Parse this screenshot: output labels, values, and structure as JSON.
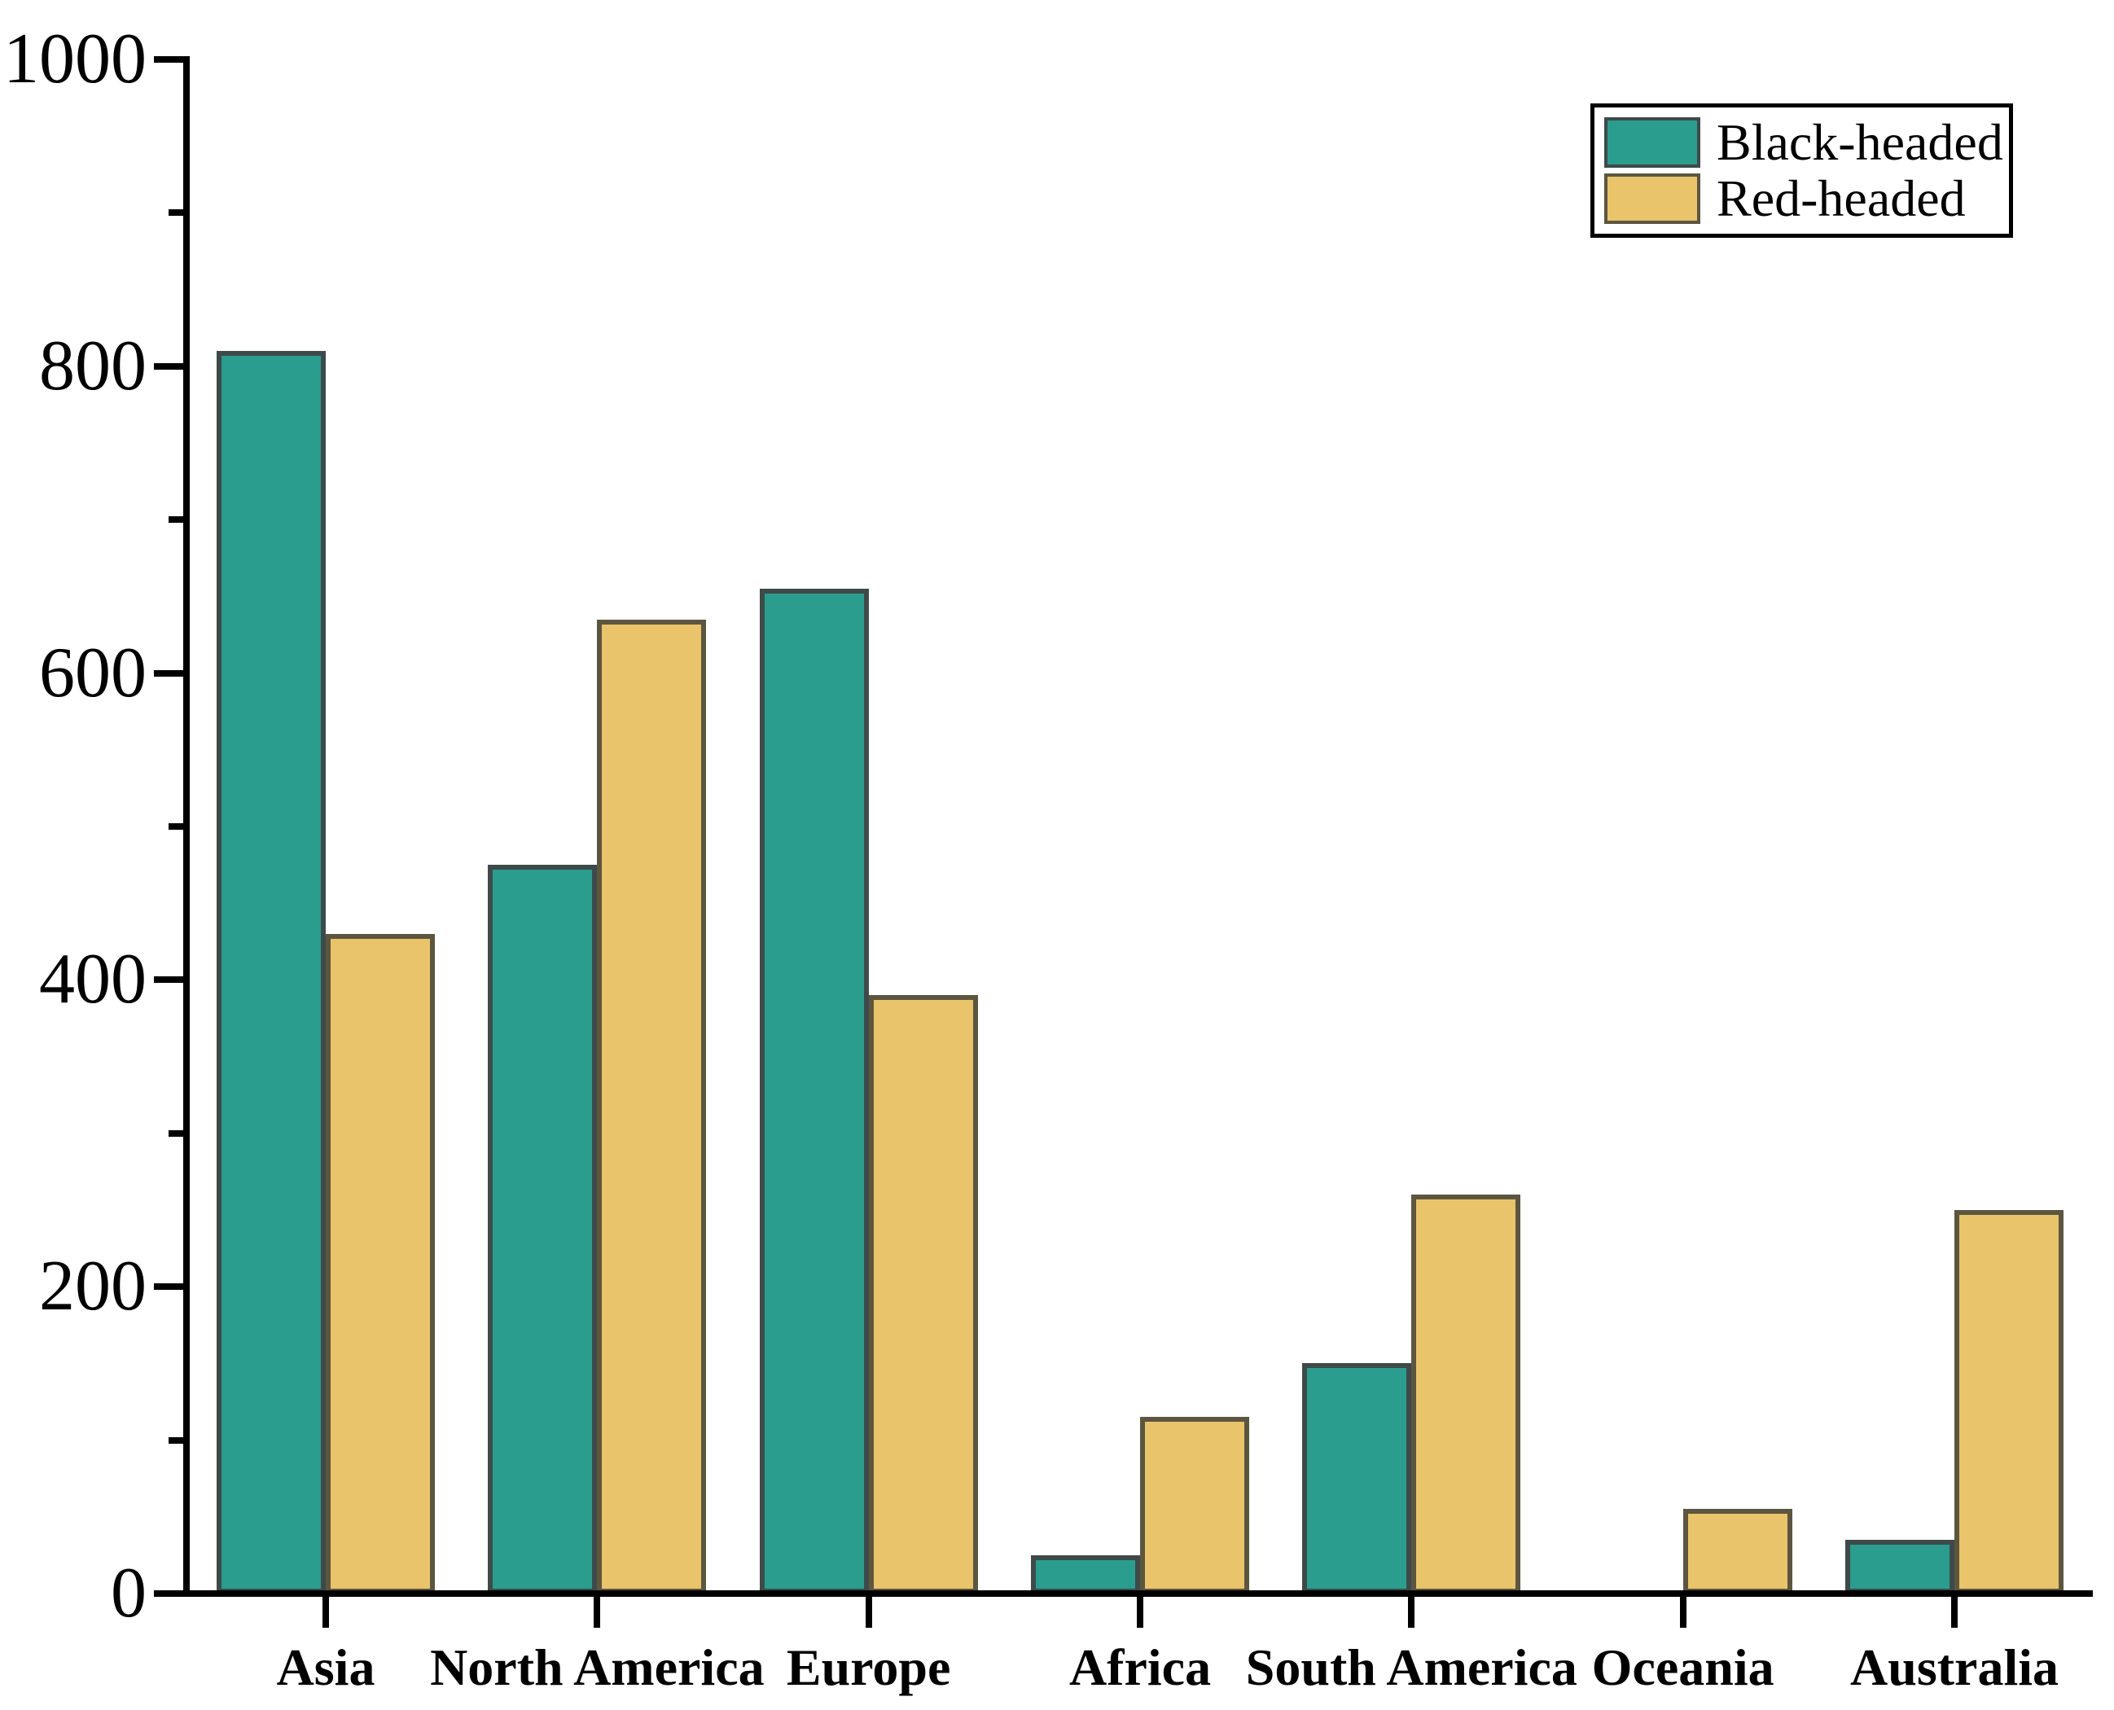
{
  "chart_data": {
    "type": "bar",
    "title": "",
    "categories": [
      "Asia",
      "North America",
      "Europe",
      "Africa",
      "South America",
      "Oceania",
      "Australia"
    ],
    "series": [
      {
        "name": "Black-headed",
        "color": "#2a9d8f",
        "border_color": "#3e4a49",
        "values": [
          810,
          475,
          655,
          25,
          150,
          0,
          35
        ]
      },
      {
        "name": "Red-headed",
        "color": "#e9c46a",
        "border_color": "#5c5640",
        "values": [
          430,
          635,
          390,
          115,
          260,
          55,
          250
        ]
      }
    ],
    "xlabel": "",
    "ylabel": "",
    "ylim": [
      0,
      1000
    ],
    "ytick_step": 200,
    "yminor_step": 100,
    "ytick_labels": [
      "0",
      "200",
      "400",
      "600",
      "800",
      "1000"
    ],
    "grid": false,
    "legend_position": "top-right",
    "axis_color": "#000000",
    "text_color": "#000000",
    "background_color": "#ffffff"
  },
  "legend": {
    "items": [
      {
        "label": "Black-headed"
      },
      {
        "label": "Red-headed"
      }
    ]
  }
}
